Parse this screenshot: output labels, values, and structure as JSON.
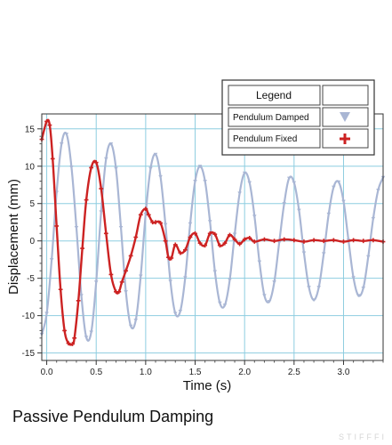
{
  "caption": "Passive Pendulum Damping",
  "watermark": "STIFFFI",
  "chart_data": {
    "type": "line",
    "title": "",
    "xlabel": "Time (s)",
    "ylabel": "Displacement (mm)",
    "xlim": [
      -0.05,
      3.4
    ],
    "ylim": [
      -16,
      17
    ],
    "xticks": [
      0.0,
      0.5,
      1.0,
      1.5,
      2.0,
      2.5,
      3.0
    ],
    "xtick_labels": [
      "0.0",
      "0.5",
      "1.0",
      "1.5",
      "2.0",
      "2.5",
      "3.0"
    ],
    "yticks": [
      -15,
      -10,
      -5,
      0,
      5,
      10,
      15
    ],
    "ytick_labels": [
      "-15",
      "-10",
      "-5",
      "0",
      "5",
      "10",
      "15"
    ],
    "grid": true,
    "legend": {
      "title": "Legend",
      "placement": "top-right",
      "entries": [
        {
          "label": "Pendulum Damped",
          "marker": "triangle-down",
          "color": "#a9b6d4"
        },
        {
          "label": "Pendulum Fixed",
          "marker": "plus",
          "color": "#cc2222"
        }
      ]
    },
    "series": [
      {
        "name": "Pendulum Damped",
        "color": "#a9b6d4",
        "x": [
          -0.05,
          0.0,
          0.05,
          0.1,
          0.15,
          0.2,
          0.25,
          0.3,
          0.35,
          0.4,
          0.45,
          0.5,
          0.55,
          0.6,
          0.65,
          0.7,
          0.75,
          0.8,
          0.85,
          0.9,
          0.95,
          1.0,
          1.05,
          1.1,
          1.15,
          1.2,
          1.25,
          1.3,
          1.35,
          1.4,
          1.45,
          1.5,
          1.55,
          1.6,
          1.65,
          1.7,
          1.75,
          1.8,
          1.85,
          1.9,
          1.95,
          2.0,
          2.05,
          2.1,
          2.15,
          2.2,
          2.25,
          2.3,
          2.35,
          2.4,
          2.45,
          2.5,
          2.55,
          2.6,
          2.65,
          2.7,
          2.75,
          2.8,
          2.85,
          2.9,
          2.95,
          3.0,
          3.05,
          3.1,
          3.15,
          3.2,
          3.25,
          3.3,
          3.35,
          3.4
        ],
        "y": [
          -12.5,
          -9.7,
          -2.5,
          6.5,
          13.0,
          14.3,
          9.9,
          1.8,
          -7.3,
          -12.9,
          -12.2,
          -5.5,
          3.9,
          11.0,
          13.0,
          9.7,
          1.8,
          -6.8,
          -11.4,
          -10.6,
          -4.7,
          3.6,
          9.7,
          11.6,
          8.6,
          2.2,
          -5.4,
          -9.7,
          -9.4,
          -4.9,
          2.3,
          8.0,
          10.0,
          8.0,
          2.6,
          -4.1,
          -8.3,
          -8.6,
          -5.2,
          0.9,
          6.4,
          9.1,
          7.8,
          3.3,
          -2.8,
          -7.3,
          -8.1,
          -5.5,
          -0.2,
          5.0,
          8.4,
          7.8,
          4.1,
          -1.6,
          -6.2,
          -7.9,
          -6.2,
          -1.7,
          3.6,
          7.2,
          7.9,
          5.3,
          0.1,
          -4.9,
          -7.3,
          -6.3,
          -2.1,
          3.0,
          6.8,
          8.5
        ]
      },
      {
        "name": "Pendulum Fixed",
        "color": "#cc2222",
        "x": [
          -0.05,
          0.0,
          0.03,
          0.06,
          0.1,
          0.14,
          0.18,
          0.22,
          0.26,
          0.28,
          0.32,
          0.36,
          0.4,
          0.45,
          0.5,
          0.55,
          0.6,
          0.65,
          0.7,
          0.73,
          0.76,
          0.8,
          0.85,
          0.9,
          0.95,
          1.0,
          1.03,
          1.07,
          1.1,
          1.15,
          1.2,
          1.23,
          1.26,
          1.3,
          1.35,
          1.4,
          1.45,
          1.5,
          1.55,
          1.6,
          1.65,
          1.7,
          1.75,
          1.8,
          1.85,
          1.9,
          1.95,
          2.0,
          2.05,
          2.1,
          2.2,
          2.3,
          2.4,
          2.5,
          2.6,
          2.7,
          2.8,
          2.9,
          3.0,
          3.1,
          3.2,
          3.3,
          3.4
        ],
        "y": [
          13.6,
          16.0,
          15.5,
          11.0,
          2.0,
          -6.5,
          -12.0,
          -13.7,
          -13.8,
          -13.0,
          -8.0,
          -1.0,
          5.5,
          9.8,
          10.5,
          7.0,
          1.0,
          -4.5,
          -6.8,
          -6.8,
          -5.5,
          -4.0,
          -2.0,
          0.5,
          3.5,
          4.3,
          3.5,
          2.5,
          2.5,
          2.4,
          0.0,
          -2.2,
          -2.3,
          -0.5,
          -1.6,
          -1.2,
          0.5,
          1.0,
          -0.3,
          -0.6,
          1.0,
          0.9,
          -0.6,
          -0.3,
          0.8,
          0.2,
          -0.4,
          0.2,
          0.4,
          -0.1,
          0.2,
          0.0,
          0.2,
          0.1,
          -0.1,
          0.1,
          0.0,
          0.1,
          -0.1,
          0.1,
          0.0,
          0.1,
          -0.1
        ]
      }
    ]
  }
}
